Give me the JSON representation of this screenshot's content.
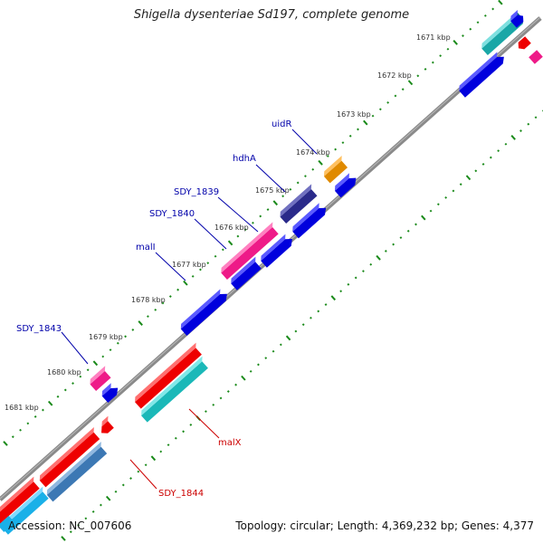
{
  "title": "Shigella dysenteriae Sd197, complete genome",
  "footer": {
    "accession": "Accession: NC_007606",
    "summary": "Topology: circular; Length: 4,369,232 bp; Genes: 4,377"
  },
  "colors": {
    "backbone": "#808080",
    "ruler_ticks": "#1a8a1a",
    "label_plus": "#0000aa",
    "label_minus": "#cc0000"
  },
  "ruler_labels": [
    "1671 kbp",
    "1672 kbp",
    "1673 kbp",
    "1674 kbp",
    "1675 kbp",
    "1676 kbp",
    "1677 kbp",
    "1678 kbp",
    "1679 kbp",
    "1680 kbp",
    "1681 kbp"
  ],
  "gene_labels": {
    "plus": [
      "uidR",
      "hdhA",
      "SDY_1839",
      "SDY_1840",
      "malI",
      "SDY_1843"
    ],
    "minus": [
      "malX",
      "SDY_1844"
    ]
  }
}
